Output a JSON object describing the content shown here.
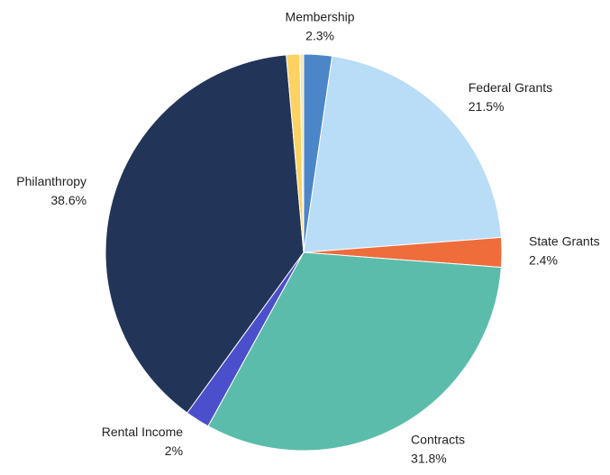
{
  "chart_data": {
    "type": "pie",
    "categories": [
      "Membership",
      "Federal Grants",
      "State Grants",
      "Contracts",
      "Rental Income",
      "Philanthropy",
      null,
      null
    ],
    "values": [
      2.3,
      21.5,
      2.4,
      31.8,
      2,
      38.6,
      1.1,
      0.3
    ],
    "value_labels": [
      "2.3%",
      "21.5%",
      "2.4%",
      "31.8%",
      "2%",
      "38.6%",
      null,
      null
    ],
    "colors": [
      "#4a86c8",
      "#b9dcf7",
      "#ef6c3b",
      "#5bbcab",
      "#4b4fcb",
      "#223558",
      "#fdd262",
      "#f3e5b5"
    ]
  }
}
